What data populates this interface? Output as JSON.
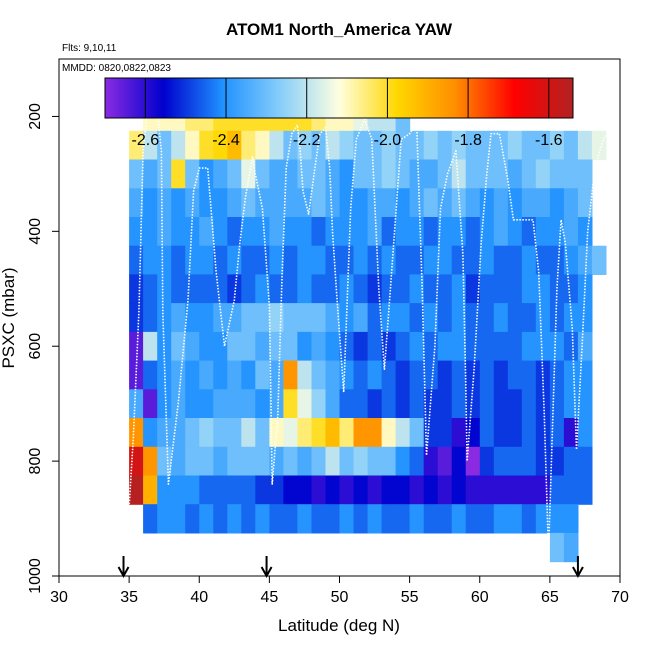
{
  "chart_data": {
    "type": "heatmap",
    "title": "ATOM1 North_America YAW",
    "flights_label": "Flts: 9,10,11",
    "dates_label": "MMDD: 0820,0822,0823",
    "xlabel": "Latitude (deg N)",
    "ylabel": "PSXC (mbar)",
    "xlim": [
      30,
      70
    ],
    "ylim": [
      1000,
      100
    ],
    "x_ticks": [
      "30",
      "35",
      "40",
      "45",
      "50",
      "55",
      "60",
      "65",
      "70"
    ],
    "y_ticks": [
      "200",
      "400",
      "600",
      "800",
      "1000"
    ],
    "colorbar": {
      "range": [
        -2.7,
        -1.54
      ],
      "tick_labels": [
        "-2.6",
        "-2.4",
        "-2.2",
        "-2.0",
        "-1.8",
        "-1.6"
      ],
      "tick_values": [
        -2.6,
        -2.4,
        -2.2,
        -2.0,
        -1.8,
        -1.6
      ],
      "colors": [
        "#8a2be2",
        "#0000cd",
        "#1e90ff",
        "#87cefa",
        "#ffffe0",
        "#ffd700",
        "#ff8c00",
        "#ff0000",
        "#b22222"
      ]
    },
    "arrows_lat": [
      34.6,
      44.8,
      67.0
    ],
    "x_bin_edges": [
      35,
      36,
      37,
      38,
      39,
      40,
      41,
      42,
      43,
      44,
      45,
      46,
      47,
      48,
      49,
      50,
      51,
      52,
      53,
      54,
      55,
      56,
      57,
      58,
      59,
      60,
      61,
      62,
      63,
      64,
      65,
      66,
      67,
      68,
      69
    ],
    "y_bin_centers": [
      200,
      250,
      300,
      350,
      400,
      450,
      500,
      550,
      600,
      650,
      700,
      750,
      800,
      850,
      900,
      950
    ],
    "grid": [
      [
        null,
        -2.1,
        -2.1,
        -2.1,
        -2.05,
        -2.05,
        -2.0,
        -2.0,
        -2.0,
        -2.0,
        -2.0,
        -2.0,
        -2.0,
        -2.05,
        -2.1,
        -2.1,
        -2.15,
        -2.2,
        -2.2,
        -2.3,
        null,
        null,
        null,
        null,
        null,
        null,
        null,
        null,
        null,
        null,
        null,
        null,
        null,
        null
      ],
      [
        -2.05,
        -2.2,
        -2.3,
        -2.2,
        -2.1,
        -2.0,
        -1.98,
        -1.92,
        -2.05,
        -2.1,
        -2.2,
        -2.3,
        -2.25,
        -2.3,
        -2.2,
        -2.25,
        -2.3,
        -2.3,
        -2.25,
        -2.3,
        -2.3,
        -2.25,
        -2.3,
        -2.25,
        -2.3,
        -2.3,
        -2.3,
        -2.25,
        -2.3,
        -2.3,
        -2.25,
        -2.3,
        -2.2,
        -2.15
      ],
      [
        -2.3,
        -2.35,
        -2.3,
        -2.0,
        -2.3,
        -2.4,
        -2.35,
        -2.3,
        -2.15,
        -2.3,
        -2.35,
        -2.35,
        -2.3,
        -2.3,
        -2.35,
        -2.4,
        -2.3,
        -2.3,
        -2.25,
        -2.3,
        -2.35,
        -2.35,
        -2.3,
        -2.2,
        -2.3,
        -2.3,
        -2.3,
        -2.35,
        -2.3,
        -2.25,
        -2.3,
        -2.3,
        -2.3,
        null
      ],
      [
        -2.35,
        -2.4,
        -2.35,
        -2.4,
        -2.35,
        -2.4,
        -2.4,
        -2.35,
        -2.3,
        -2.35,
        -2.35,
        -2.35,
        -2.35,
        -2.3,
        -2.35,
        -2.4,
        -2.4,
        -2.35,
        -2.35,
        -2.4,
        -2.35,
        -2.3,
        -2.35,
        -2.3,
        -2.35,
        -2.4,
        -2.35,
        -2.4,
        -2.35,
        -2.35,
        -2.4,
        -2.35,
        -2.3,
        null
      ],
      [
        -2.4,
        -2.4,
        -2.35,
        -2.4,
        -2.4,
        -2.35,
        -2.4,
        -2.45,
        -2.4,
        -2.4,
        -2.35,
        -2.4,
        -2.4,
        -2.45,
        -2.4,
        -2.4,
        -2.4,
        -2.35,
        -2.45,
        -2.4,
        -2.4,
        -2.45,
        -2.4,
        -2.4,
        -2.45,
        -2.4,
        -2.35,
        -2.4,
        -2.45,
        -2.4,
        -2.4,
        -2.35,
        -2.4,
        null
      ],
      [
        -2.45,
        -2.4,
        -2.4,
        -2.45,
        -2.4,
        -2.4,
        -2.45,
        -2.4,
        -2.45,
        -2.45,
        -2.4,
        -2.45,
        -2.4,
        -2.4,
        -2.45,
        -2.45,
        -2.4,
        -2.45,
        -2.4,
        -2.45,
        -2.45,
        -2.4,
        -2.4,
        -2.45,
        -2.45,
        -2.4,
        -2.45,
        -2.45,
        -2.4,
        -2.45,
        -2.45,
        -2.4,
        -2.35,
        -2.3
      ],
      [
        -2.5,
        -2.45,
        -2.4,
        -2.45,
        -2.45,
        -2.45,
        -2.45,
        -2.5,
        -2.45,
        -2.4,
        -2.45,
        -2.45,
        -2.4,
        -2.45,
        -2.45,
        -2.4,
        -2.45,
        -2.5,
        -2.45,
        -2.45,
        -2.4,
        -2.45,
        -2.45,
        -2.4,
        -2.5,
        -2.45,
        -2.45,
        -2.45,
        -2.4,
        -2.4,
        -2.45,
        -2.45,
        -2.4,
        null
      ],
      [
        -2.5,
        -2.45,
        -2.4,
        -2.35,
        -2.4,
        -2.4,
        -2.35,
        -2.35,
        -2.3,
        -2.3,
        -2.25,
        -2.3,
        -2.3,
        -2.3,
        -2.35,
        -2.4,
        -2.35,
        -2.45,
        -2.4,
        -2.4,
        -2.45,
        -2.4,
        -2.45,
        -2.4,
        -2.45,
        -2.45,
        -2.4,
        -2.45,
        -2.45,
        -2.4,
        -2.45,
        -2.4,
        -2.4,
        null
      ],
      [
        -2.65,
        -2.2,
        -2.4,
        -2.3,
        -2.35,
        -2.4,
        -2.4,
        -2.3,
        -2.3,
        -2.35,
        -2.3,
        -2.3,
        -2.4,
        -2.35,
        -2.4,
        -2.45,
        -2.5,
        -2.45,
        -2.5,
        -2.45,
        -2.4,
        -2.45,
        -2.4,
        -2.4,
        -2.45,
        -2.45,
        -2.45,
        -2.45,
        -2.4,
        -2.4,
        -2.4,
        -2.45,
        -2.35,
        null
      ],
      [
        -2.65,
        -2.45,
        -2.4,
        -2.35,
        -2.4,
        -2.35,
        -2.4,
        -2.35,
        -2.4,
        -2.3,
        -2.35,
        -1.85,
        -2.2,
        -2.3,
        -2.35,
        -2.4,
        -2.45,
        -2.4,
        -2.45,
        -2.5,
        -2.45,
        -2.45,
        -2.5,
        -2.45,
        -2.5,
        -2.45,
        -2.5,
        -2.45,
        -2.45,
        -2.5,
        -2.45,
        -2.4,
        -2.4,
        null
      ],
      [
        -2.35,
        -2.65,
        -2.4,
        -2.35,
        -2.4,
        -2.4,
        -2.35,
        -2.35,
        -2.35,
        -2.4,
        -2.35,
        -2.0,
        -2.15,
        -2.25,
        -2.35,
        -2.45,
        -2.45,
        -2.5,
        -2.45,
        -2.5,
        -2.45,
        -2.5,
        -2.5,
        -2.45,
        -2.5,
        -2.45,
        -2.5,
        -2.5,
        -2.45,
        -2.5,
        -2.45,
        -2.4,
        -2.4,
        null
      ],
      [
        -1.85,
        -2.4,
        -2.35,
        -2.35,
        -2.3,
        -2.25,
        -2.3,
        -2.3,
        -2.2,
        -2.3,
        -2.1,
        -2.15,
        -2.05,
        -2.0,
        -1.92,
        -2.05,
        -1.85,
        -1.85,
        -2.1,
        -2.2,
        -2.3,
        -2.5,
        -2.5,
        -2.6,
        -2.55,
        -2.45,
        -2.5,
        -2.5,
        -2.45,
        -2.5,
        -2.45,
        -2.6,
        -2.4,
        null
      ],
      [
        -1.6,
        -1.85,
        -2.3,
        -2.35,
        -2.3,
        -2.3,
        -2.35,
        -2.3,
        -2.3,
        -2.3,
        -2.35,
        -2.3,
        -2.35,
        -2.3,
        -2.2,
        -2.3,
        -2.25,
        -2.3,
        -2.3,
        -2.4,
        -2.45,
        -2.6,
        -2.65,
        -2.55,
        -2.7,
        -2.5,
        -2.45,
        -2.45,
        -2.45,
        -2.5,
        -2.5,
        -2.45,
        -2.45,
        null
      ],
      [
        -1.55,
        -1.9,
        -2.4,
        -2.4,
        -2.4,
        -2.45,
        -2.45,
        -2.45,
        -2.45,
        -2.5,
        -2.5,
        -2.55,
        -2.55,
        -2.6,
        -2.55,
        -2.6,
        -2.55,
        -2.6,
        -2.55,
        -2.55,
        -2.6,
        -2.55,
        -2.6,
        -2.55,
        -2.6,
        -2.6,
        -2.6,
        -2.6,
        -2.6,
        -2.6,
        -2.45,
        -2.45,
        -2.45,
        null
      ],
      [
        null,
        -2.45,
        -2.4,
        -2.4,
        -2.45,
        -2.4,
        -2.45,
        -2.4,
        -2.45,
        -2.4,
        -2.45,
        -2.45,
        -2.4,
        -2.45,
        -2.45,
        -2.4,
        -2.45,
        -2.4,
        -2.45,
        -2.45,
        -2.4,
        -2.45,
        -2.45,
        -2.4,
        -2.45,
        -2.45,
        -2.4,
        -2.4,
        -2.45,
        -2.4,
        -2.4,
        -2.4,
        null,
        null
      ],
      [
        null,
        null,
        null,
        null,
        null,
        null,
        null,
        null,
        null,
        null,
        null,
        null,
        null,
        null,
        null,
        null,
        null,
        null,
        null,
        null,
        null,
        null,
        null,
        null,
        null,
        null,
        null,
        null,
        null,
        null,
        -2.3,
        -2.35,
        null,
        null
      ]
    ],
    "flight_track": [
      [
        35.0,
        880
      ],
      [
        35.3,
        760
      ],
      [
        35.7,
        540
      ],
      [
        36.0,
        260
      ],
      [
        36.3,
        190
      ],
      [
        37.0,
        190
      ],
      [
        37.3,
        260
      ],
      [
        37.4,
        540
      ],
      [
        37.8,
        840
      ],
      [
        38.5,
        700
      ],
      [
        39.2,
        520
      ],
      [
        39.6,
        330
      ],
      [
        40.0,
        290
      ],
      [
        40.6,
        290
      ],
      [
        41.2,
        470
      ],
      [
        41.8,
        600
      ],
      [
        42.5,
        520
      ],
      [
        42.9,
        420
      ],
      [
        43.3,
        340
      ],
      [
        43.8,
        270
      ],
      [
        44.0,
        300
      ],
      [
        44.5,
        360
      ],
      [
        45.0,
        530
      ],
      [
        45.2,
        840
      ],
      [
        45.6,
        720
      ],
      [
        45.9,
        480
      ],
      [
        46.2,
        290
      ],
      [
        46.6,
        230
      ],
      [
        47.0,
        215
      ],
      [
        47.2,
        260
      ],
      [
        47.4,
        330
      ],
      [
        47.8,
        370
      ],
      [
        48.3,
        280
      ],
      [
        48.6,
        230
      ],
      [
        49.0,
        220
      ],
      [
        49.3,
        290
      ],
      [
        49.5,
        400
      ],
      [
        49.8,
        510
      ],
      [
        50.3,
        680
      ],
      [
        50.8,
        360
      ],
      [
        51.2,
        240
      ],
      [
        51.8,
        205
      ],
      [
        52.3,
        240
      ],
      [
        52.8,
        500
      ],
      [
        53.2,
        640
      ],
      [
        53.6,
        510
      ],
      [
        54.4,
        240
      ],
      [
        55.0,
        230
      ],
      [
        55.5,
        210
      ],
      [
        55.9,
        500
      ],
      [
        56.2,
        790
      ],
      [
        56.8,
        600
      ],
      [
        57.2,
        360
      ],
      [
        57.7,
        300
      ],
      [
        58.3,
        260
      ],
      [
        58.8,
        440
      ],
      [
        59.0,
        660
      ],
      [
        59.1,
        800
      ],
      [
        59.6,
        640
      ],
      [
        60.1,
        420
      ],
      [
        60.5,
        300
      ],
      [
        60.8,
        230
      ],
      [
        61.4,
        230
      ],
      [
        62.0,
        310
      ],
      [
        62.4,
        380
      ],
      [
        63.8,
        380
      ],
      [
        64.2,
        470
      ],
      [
        64.6,
        720
      ],
      [
        64.9,
        960
      ],
      [
        65.5,
        500
      ],
      [
        65.8,
        380
      ],
      [
        66.1,
        420
      ],
      [
        66.6,
        570
      ],
      [
        66.9,
        780
      ],
      [
        67.3,
        600
      ],
      [
        67.7,
        400
      ],
      [
        68.2,
        290
      ],
      [
        68.8,
        240
      ],
      [
        69.6,
        215
      ]
    ]
  }
}
